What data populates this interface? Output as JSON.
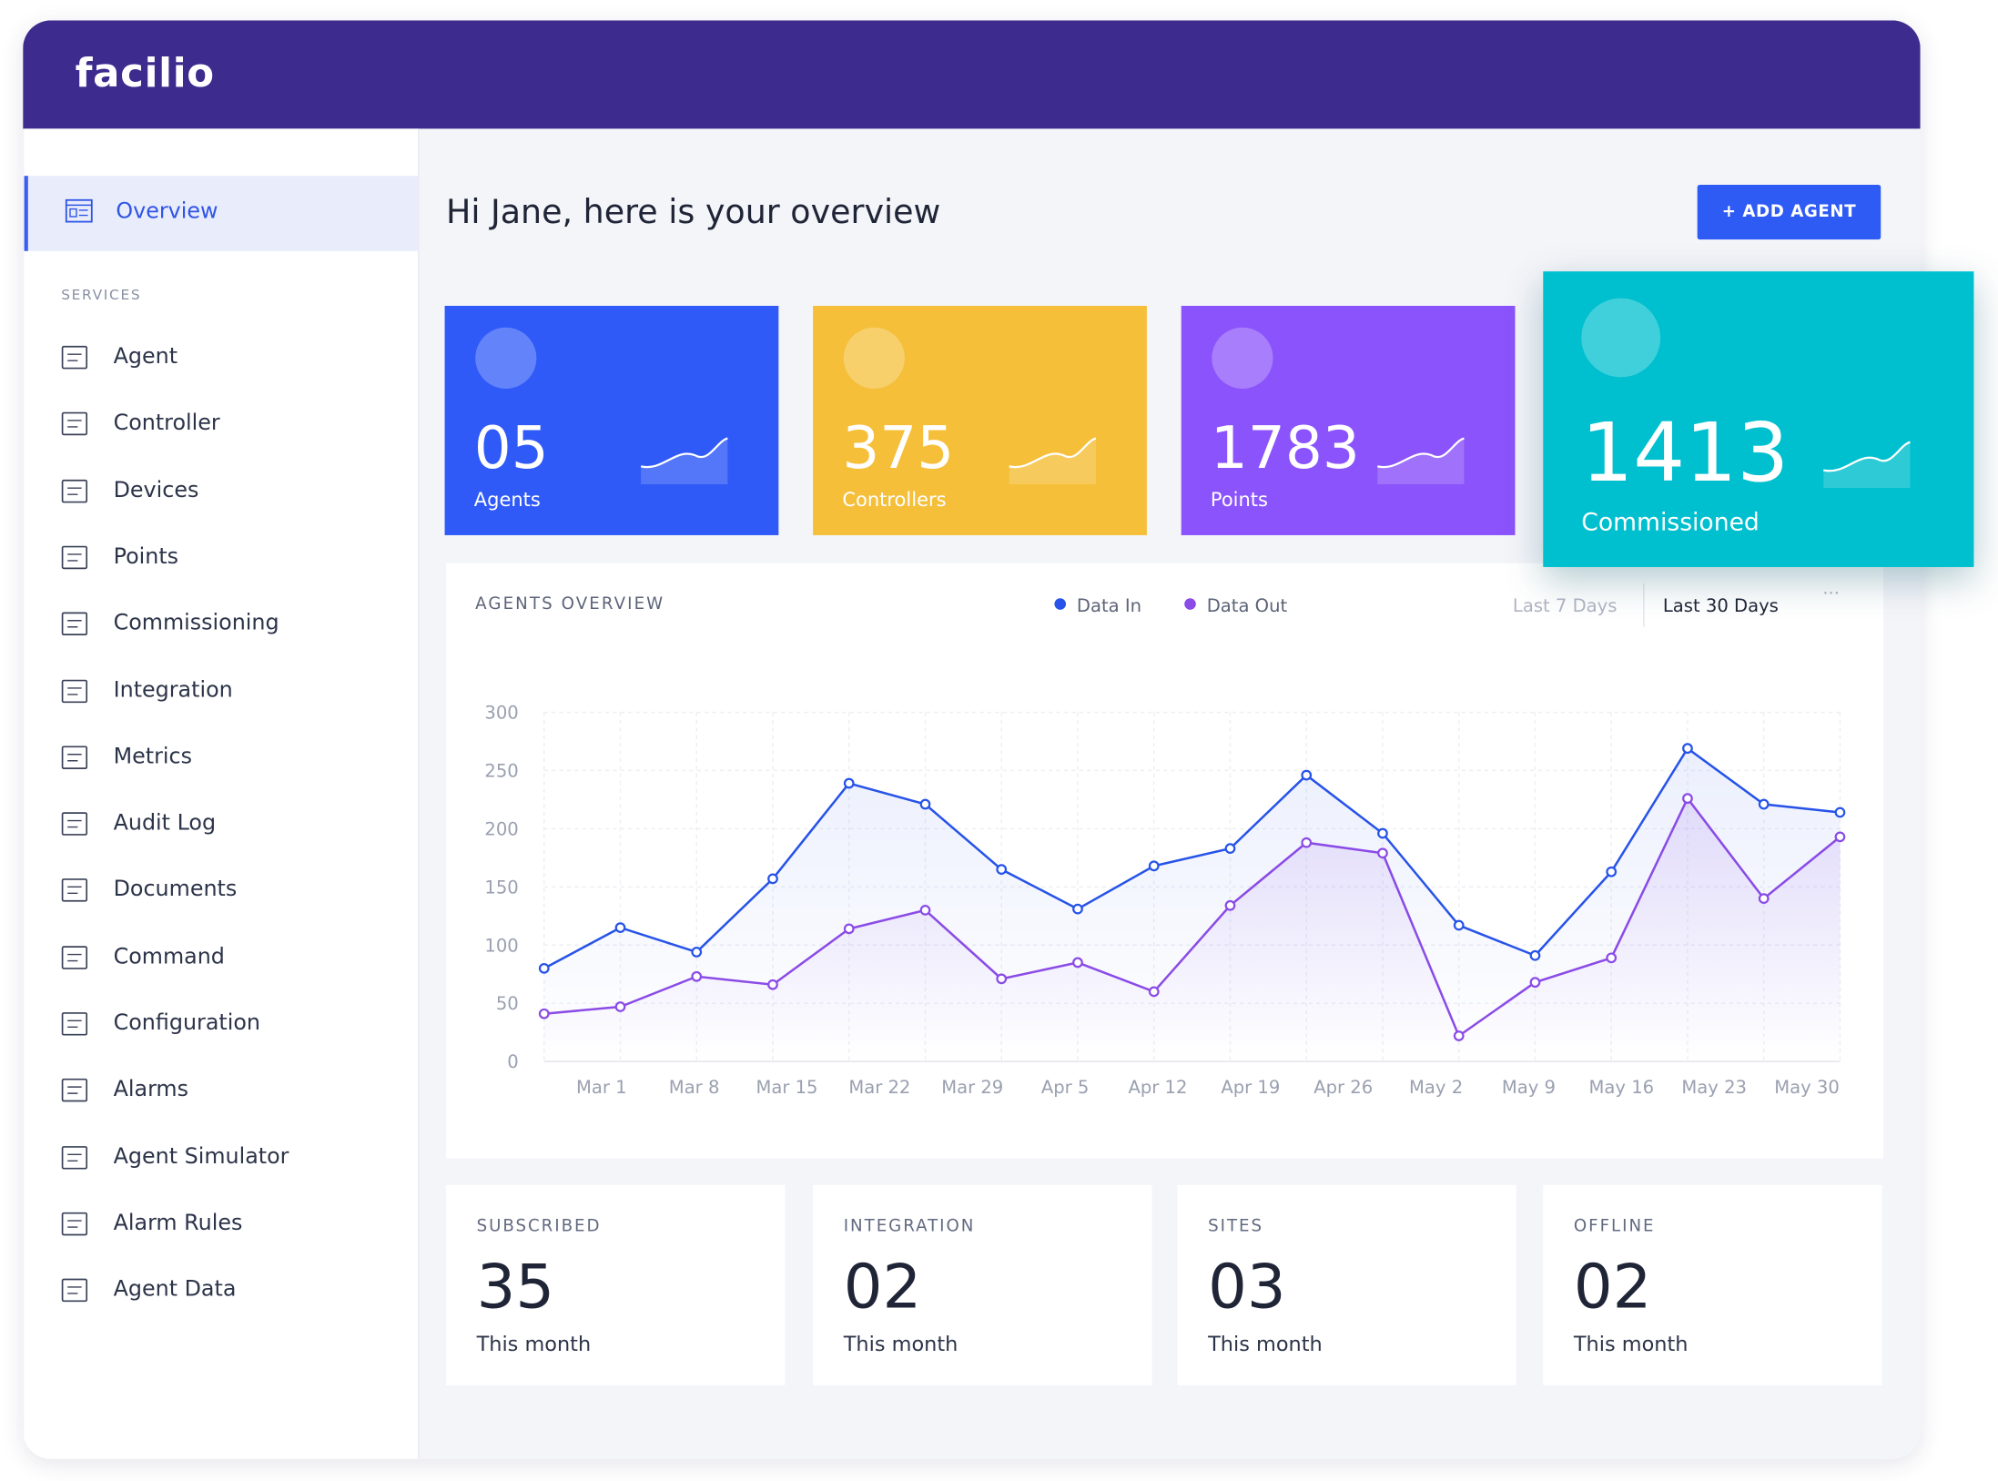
{
  "header": {
    "logo": "facilio"
  },
  "sidebar": {
    "active": "Overview",
    "section": "SERVICES",
    "items": [
      "Agent",
      "Controller",
      "Devices",
      "Points",
      "Commissioning",
      "Integration",
      "Metrics",
      "Audit Log",
      "Documents",
      "Command",
      "Configuration",
      "Alarms",
      "Agent Simulator",
      "Alarm Rules",
      "Agent Data"
    ]
  },
  "greeting": "Hi Jane, here is your overview",
  "button": "+ ADD AGENT",
  "stats": [
    {
      "value": "05",
      "label": "Agents",
      "color": "#2f5af8"
    },
    {
      "value": "375",
      "label": "Controllers",
      "color": "#f5bf3a"
    },
    {
      "value": "1783",
      "label": "Points",
      "color": "#8b53fb"
    },
    {
      "value": "1413",
      "label": "Commissioned",
      "color": "#00c0cf"
    }
  ],
  "chart_data": {
    "type": "line",
    "title": "AGENTS OVERVIEW",
    "ranges": [
      "Last 7 Days",
      "Last 30 Days"
    ],
    "x_labels": [
      "Mar 1",
      "Mar 8",
      "Mar 15",
      "Mar 22",
      "Mar 29",
      "Apr 5",
      "Apr 12",
      "Apr 19",
      "Apr 26",
      "May 2",
      "May 9",
      "May 16",
      "May 23",
      "May 30"
    ],
    "ylim": [
      0,
      300
    ],
    "yticks": [
      0,
      50,
      100,
      150,
      200,
      250,
      300
    ],
    "grid": true,
    "series": [
      {
        "name": "Data In",
        "color": "#2753e8",
        "values": [
          80,
          115,
          94,
          157,
          239,
          221,
          165,
          131,
          168,
          183,
          246,
          196,
          117,
          91,
          163,
          269,
          221,
          214
        ]
      },
      {
        "name": "Data Out",
        "color": "#8a4be6",
        "values": [
          41,
          47,
          73,
          66,
          114,
          130,
          71,
          85,
          60,
          134,
          188,
          179,
          22,
          68,
          89,
          226,
          140,
          193
        ]
      }
    ]
  },
  "summary": [
    {
      "title": "SUBSCRIBED",
      "value": "35",
      "note": "This month"
    },
    {
      "title": "INTEGRATION",
      "value": "02",
      "note": "This month"
    },
    {
      "title": "SITES",
      "value": "03",
      "note": "This month"
    },
    {
      "title": "OFFLINE",
      "value": "02",
      "note": "This month"
    }
  ]
}
